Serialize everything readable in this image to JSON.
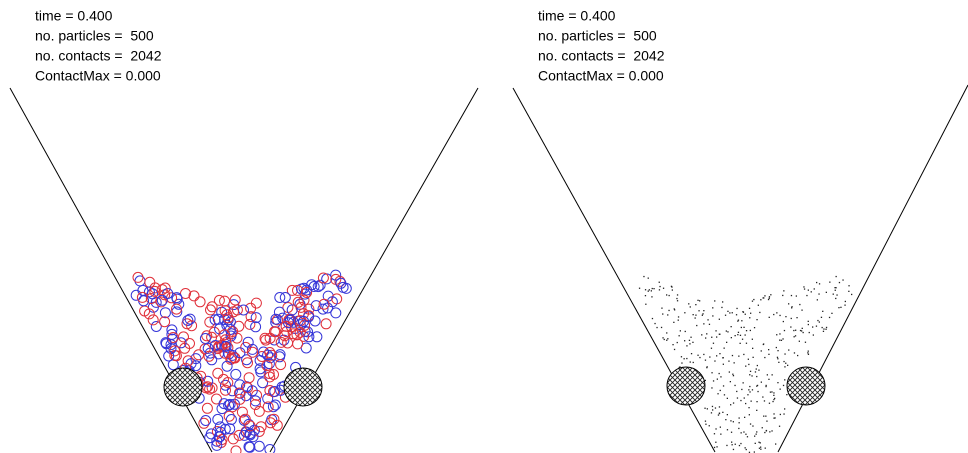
{
  "panels": [
    {
      "lines": [
        "time = 0.400",
        "no. particles =  500",
        "no. contacts =  2042",
        "ContactMax = 0.000"
      ]
    },
    {
      "lines": [
        "time = 0.400",
        "no. particles =  500",
        "no. contacts =  2042",
        "ContactMax = 0.000"
      ]
    }
  ]
}
